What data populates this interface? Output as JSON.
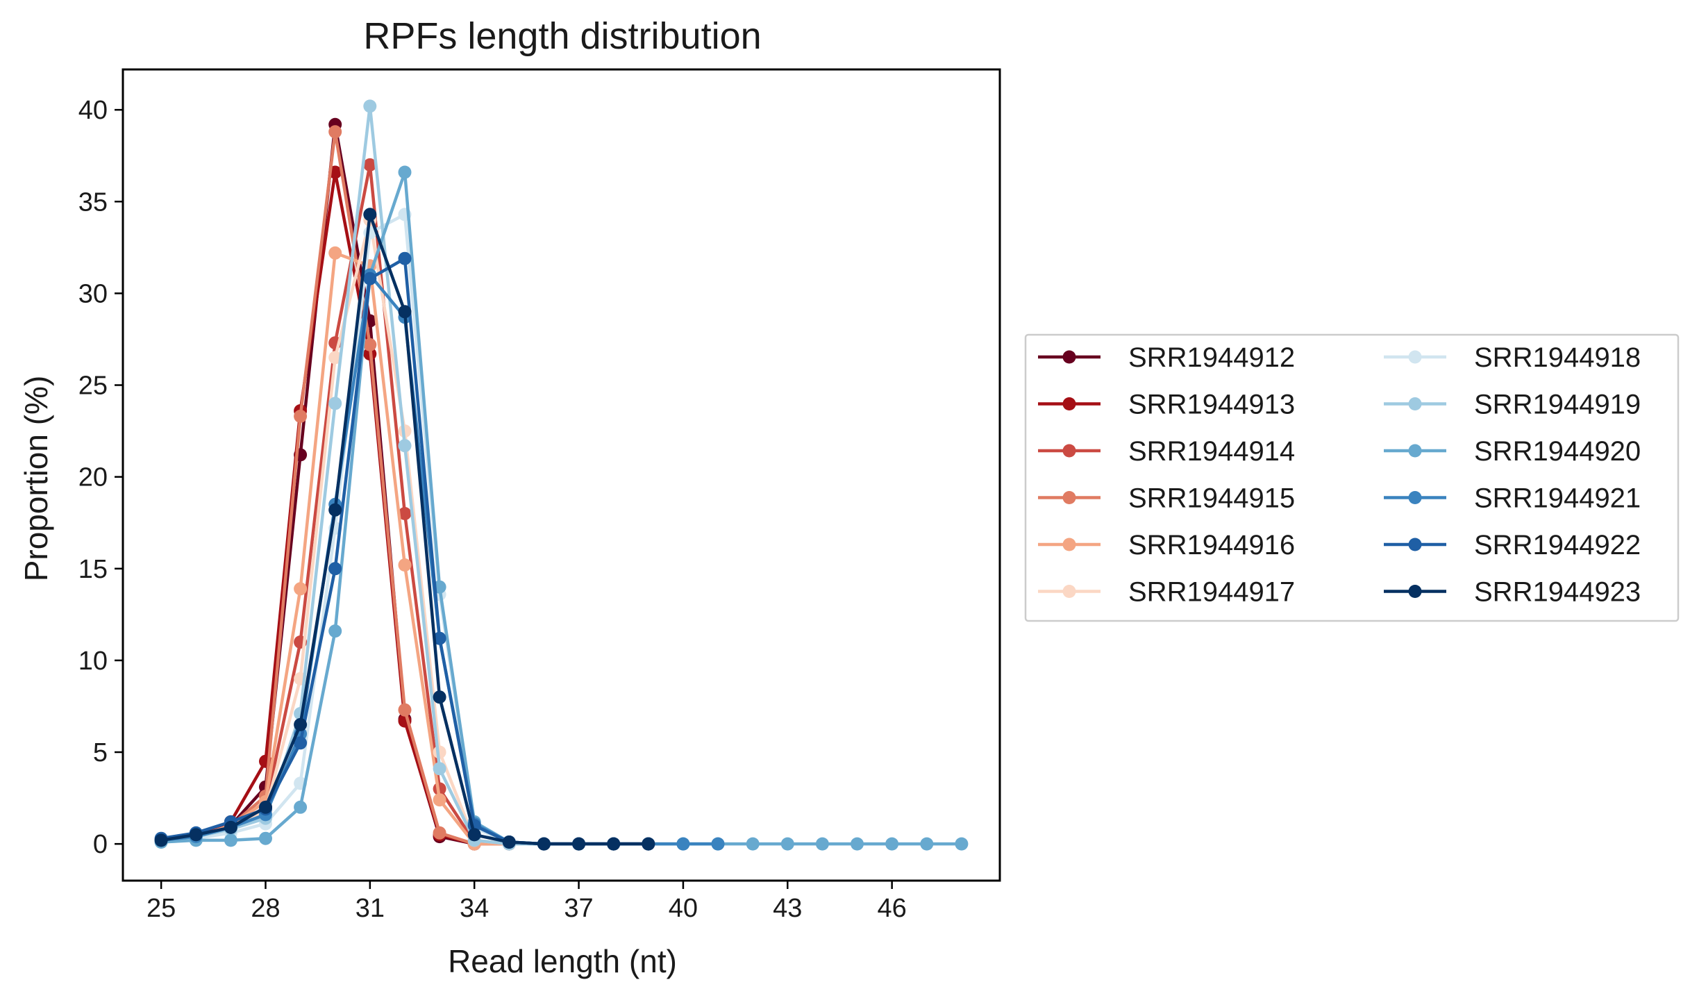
{
  "chart_data": {
    "type": "line",
    "title": "RPFs length distribution",
    "xlabel": "Read length (nt)",
    "ylabel": "Proportion (%)",
    "xlim": [
      23.9,
      49.1
    ],
    "ylim": [
      -2.0,
      42.2
    ],
    "xticks": [
      25,
      28,
      31,
      34,
      37,
      40,
      43,
      46
    ],
    "yticks": [
      0,
      5,
      10,
      15,
      20,
      25,
      30,
      35,
      40
    ],
    "grid": false,
    "legend": {
      "position": "right",
      "columns": 2
    },
    "x": [
      25,
      26,
      27,
      28,
      29,
      30,
      31,
      32,
      33,
      34,
      35,
      36,
      37,
      38,
      39,
      40,
      41,
      42,
      43,
      44,
      45,
      46,
      47,
      48
    ],
    "series": [
      {
        "name": "SRR1944912",
        "color": "#67001f",
        "values": [
          0.2,
          0.4,
          1.0,
          3.1,
          21.2,
          39.2,
          28.5,
          6.8,
          0.4,
          0.0,
          0.0,
          0.0,
          0.0,
          0.0,
          0.0,
          null,
          null,
          null,
          null,
          null,
          null,
          null,
          null,
          null
        ]
      },
      {
        "name": "SRR1944913",
        "color": "#a50f15",
        "values": [
          0.2,
          0.5,
          1.2,
          4.5,
          23.6,
          36.6,
          26.7,
          6.7,
          0.5,
          0.0,
          0.0,
          0.0,
          0.0,
          0.0,
          0.0,
          null,
          null,
          null,
          null,
          null,
          null,
          null,
          null,
          null
        ]
      },
      {
        "name": "SRR1944914",
        "color": "#cb4a42",
        "values": [
          0.2,
          0.4,
          0.9,
          2.0,
          11.0,
          27.3,
          37.0,
          18.0,
          3.0,
          0.1,
          0.0,
          0.0,
          0.0,
          0.0,
          0.0,
          null,
          null,
          null,
          null,
          null,
          null,
          null,
          null,
          null
        ]
      },
      {
        "name": "SRR1944915",
        "color": "#e07b62",
        "values": [
          0.2,
          0.4,
          1.0,
          2.6,
          23.3,
          38.8,
          27.2,
          7.3,
          0.6,
          0.0,
          0.0,
          0.0,
          0.0,
          0.0,
          0.0,
          null,
          null,
          null,
          null,
          null,
          null,
          null,
          null,
          null
        ]
      },
      {
        "name": "SRR1944916",
        "color": "#f4a582",
        "values": [
          0.2,
          0.4,
          1.0,
          2.3,
          13.9,
          32.2,
          31.5,
          15.2,
          2.4,
          0.0,
          0.0,
          0.0,
          0.0,
          0.0,
          0.0,
          null,
          null,
          null,
          null,
          null,
          null,
          null,
          null,
          null
        ]
      },
      {
        "name": "SRR1944917",
        "color": "#fbd7c4",
        "values": [
          0.2,
          0.4,
          0.8,
          1.8,
          9.0,
          26.5,
          34.0,
          22.5,
          5.0,
          0.2,
          0.0,
          0.0,
          0.0,
          0.0,
          0.0,
          null,
          null,
          null,
          null,
          null,
          null,
          null,
          null,
          null
        ]
      },
      {
        "name": "SRR1944918",
        "color": "#d1e5f0",
        "values": [
          0.1,
          0.3,
          0.6,
          1.1,
          3.3,
          17.2,
          33.3,
          34.3,
          13.6,
          0.9,
          0.0,
          0.0,
          0.0,
          0.0,
          0.0,
          null,
          null,
          null,
          null,
          null,
          null,
          null,
          null,
          null
        ]
      },
      {
        "name": "SRR1944919",
        "color": "#9ecae1",
        "values": [
          0.2,
          0.4,
          0.8,
          1.4,
          7.1,
          24.0,
          40.2,
          21.7,
          4.1,
          0.2,
          0.0,
          0.0,
          0.0,
          0.0,
          0.0,
          null,
          null,
          null,
          null,
          null,
          null,
          null,
          null,
          null
        ]
      },
      {
        "name": "SRR1944920",
        "color": "#67a9cf",
        "values": [
          0.1,
          0.2,
          0.2,
          0.3,
          2.0,
          11.6,
          31.0,
          36.6,
          14.0,
          1.2,
          0.1,
          0.0,
          0.0,
          0.0,
          0.0,
          0.0,
          0.0,
          0.0,
          0.0,
          0.0,
          0.0,
          0.0,
          0.0,
          0.0
        ]
      },
      {
        "name": "SRR1944921",
        "color": "#3a83bf",
        "values": [
          0.2,
          0.4,
          0.9,
          1.6,
          6.0,
          18.5,
          31.0,
          28.7,
          11.2,
          1.1,
          0.1,
          0.0,
          0.0,
          0.0,
          0.0,
          0.0,
          0.0,
          null,
          null,
          null,
          null,
          null,
          null,
          null
        ]
      },
      {
        "name": "SRR1944922",
        "color": "#1f5fa5",
        "values": [
          0.3,
          0.6,
          1.2,
          1.9,
          5.5,
          15.0,
          30.8,
          31.9,
          11.2,
          1.0,
          0.1,
          0.0,
          0.0,
          0.0,
          0.0,
          null,
          null,
          null,
          null,
          null,
          null,
          null,
          null,
          null
        ]
      },
      {
        "name": "SRR1944923",
        "color": "#053061",
        "values": [
          0.2,
          0.5,
          0.9,
          2.0,
          6.5,
          18.2,
          34.3,
          29.0,
          8.0,
          0.5,
          0.1,
          0.0,
          0.0,
          0.0,
          0.0,
          null,
          null,
          null,
          null,
          null,
          null,
          null,
          null,
          null
        ]
      }
    ]
  }
}
